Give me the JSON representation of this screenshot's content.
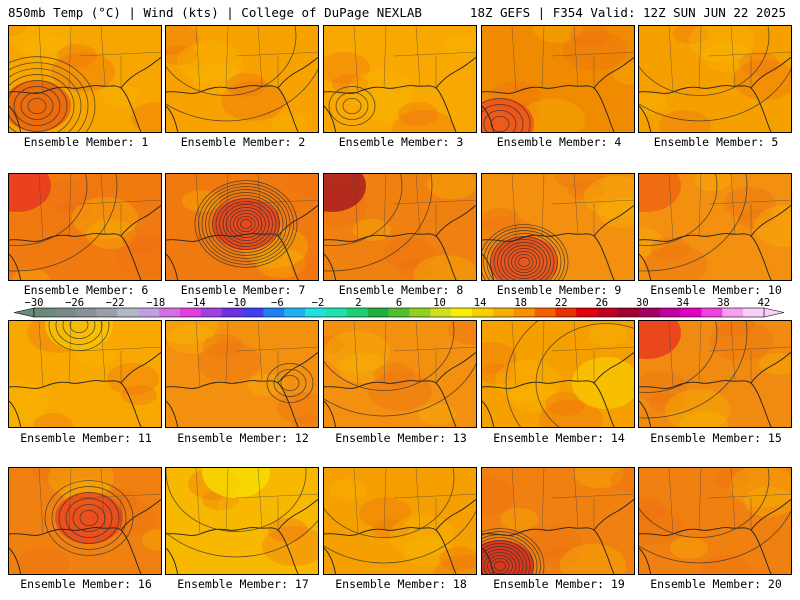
{
  "header": {
    "left": "850mb Temp (°C) | Wind (kts) | College of DuPage NEXLAB",
    "right": "18Z GEFS | F354 Valid: 12Z SUN JUN 22 2025"
  },
  "members": [
    {
      "label": "Ensemble Member: 1",
      "base": "#f7a500",
      "low": "#e85a10",
      "low_pos": "w",
      "rings": 8
    },
    {
      "label": "Ensemble Member: 2",
      "base": "#f8a200",
      "low": null,
      "low_pos": null,
      "rings": 0
    },
    {
      "label": "Ensemble Member: 3",
      "base": "#f8a800",
      "low": null,
      "low_pos": "w",
      "rings": 3
    },
    {
      "label": "Ensemble Member: 4",
      "base": "#f08a00",
      "low": "#ee4a20",
      "low_pos": "sw",
      "rings": 4
    },
    {
      "label": "Ensemble Member: 5",
      "base": "#f6a000",
      "low": null,
      "low_pos": null,
      "rings": 0
    },
    {
      "label": "Ensemble Member: 6",
      "base": "#f07a10",
      "low": "#e83020",
      "low_pos": "nw",
      "rings": 0
    },
    {
      "label": "Ensemble Member: 7",
      "base": "#f07a10",
      "low": "#e53a20",
      "low_pos": "c",
      "rings": 14
    },
    {
      "label": "Ensemble Member: 8",
      "base": "#f08010",
      "low": "#a01020",
      "low_pos": "nw",
      "rings": 0
    },
    {
      "label": "Ensemble Member: 9",
      "base": "#f39010",
      "low": "#e84020",
      "low_pos": "sc",
      "rings": 12
    },
    {
      "label": "Ensemble Member: 10",
      "base": "#f39010",
      "low": "#ee6010",
      "low_pos": "nw",
      "rings": 0
    },
    {
      "label": "Ensemble Member: 11",
      "base": "#f8a800",
      "low": "#f8c800",
      "low_pos": "n",
      "rings": 4
    },
    {
      "label": "Ensemble Member: 12",
      "base": "#f39010",
      "low": null,
      "low_pos": "e",
      "rings": 3
    },
    {
      "label": "Ensemble Member: 13",
      "base": "#f39010",
      "low": null,
      "low_pos": null,
      "rings": 0
    },
    {
      "label": "Ensemble Member: 14",
      "base": "#f6a000",
      "low": "#f8c800",
      "low_pos": "e",
      "rings": 0
    },
    {
      "label": "Ensemble Member: 15",
      "base": "#f08a10",
      "low": "#e83020",
      "low_pos": "nw",
      "rings": 0
    },
    {
      "label": "Ensemble Member: 16",
      "base": "#f08010",
      "low": "#e84020",
      "low_pos": "c",
      "rings": 6
    },
    {
      "label": "Ensemble Member: 17",
      "base": "#f8b800",
      "low": "#f8e000",
      "low_pos": "n",
      "rings": 0
    },
    {
      "label": "Ensemble Member: 18",
      "base": "#f5a000",
      "low": null,
      "low_pos": null,
      "rings": 0
    },
    {
      "label": "Ensemble Member: 19",
      "base": "#f08010",
      "low": "#d02020",
      "low_pos": "sw",
      "rings": 12
    },
    {
      "label": "Ensemble Member: 20",
      "base": "#f08010",
      "low": null,
      "low_pos": null,
      "rings": 0
    }
  ],
  "colorbar": {
    "ticks": [
      "-30",
      "-26",
      "-22",
      "-18",
      "-14",
      "-10",
      "-6",
      "-2",
      "2",
      "6",
      "10",
      "14",
      "18",
      "22",
      "26",
      "30",
      "34",
      "38",
      "42"
    ],
    "colors": [
      "#6a8a7a",
      "#7a8a88",
      "#8a9098",
      "#9aa0aa",
      "#b0b8c4",
      "#c0a0e0",
      "#d070e0",
      "#e040e0",
      "#a040e0",
      "#7030e0",
      "#4040f0",
      "#2080f0",
      "#20b0f0",
      "#20e0e0",
      "#20e0b0",
      "#20d070",
      "#20b040",
      "#50c030",
      "#90d020",
      "#d0e020",
      "#f8f000",
      "#f8d000",
      "#f8b000",
      "#f89000",
      "#f06000",
      "#e83000",
      "#e00010",
      "#c00020",
      "#a00030",
      "#a00060",
      "#c000a0",
      "#e000c0",
      "#f040e0",
      "#f8a0f0",
      "#f8d0f8"
    ]
  }
}
